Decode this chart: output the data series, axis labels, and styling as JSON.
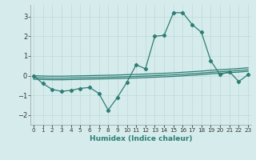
{
  "xlabel": "Humidex (Indice chaleur)",
  "x": [
    0,
    1,
    2,
    3,
    4,
    5,
    6,
    7,
    8,
    9,
    10,
    11,
    12,
    13,
    14,
    15,
    16,
    17,
    18,
    19,
    20,
    21,
    22,
    23
  ],
  "y_main": [
    0.0,
    -0.4,
    -0.7,
    -0.8,
    -0.75,
    -0.65,
    -0.6,
    -0.9,
    -1.75,
    -1.1,
    -0.35,
    0.55,
    0.35,
    2.0,
    2.05,
    3.2,
    3.2,
    2.6,
    2.2,
    0.75,
    0.05,
    0.2,
    -0.3,
    0.05
  ],
  "y_line1": [
    0.0,
    -0.02,
    -0.03,
    -0.03,
    -0.02,
    -0.01,
    0.0,
    0.01,
    0.02,
    0.03,
    0.05,
    0.06,
    0.08,
    0.1,
    0.12,
    0.14,
    0.17,
    0.2,
    0.23,
    0.27,
    0.3,
    0.33,
    0.36,
    0.4
  ],
  "y_line2": [
    -0.1,
    -0.12,
    -0.13,
    -0.13,
    -0.12,
    -0.11,
    -0.1,
    -0.09,
    -0.08,
    -0.07,
    -0.05,
    -0.04,
    -0.02,
    0.0,
    0.02,
    0.04,
    0.07,
    0.1,
    0.13,
    0.17,
    0.2,
    0.23,
    0.26,
    0.3
  ],
  "y_line3": [
    -0.18,
    -0.2,
    -0.21,
    -0.21,
    -0.2,
    -0.19,
    -0.18,
    -0.17,
    -0.16,
    -0.15,
    -0.13,
    -0.12,
    -0.1,
    -0.08,
    -0.06,
    -0.04,
    -0.01,
    0.02,
    0.05,
    0.09,
    0.12,
    0.15,
    0.18,
    0.22
  ],
  "color": "#2d7d74",
  "bg_color": "#d6ecec",
  "grid_color": "#bdd8d8",
  "ylim": [
    -2.5,
    3.6
  ],
  "yticks": [
    -2,
    -1,
    0,
    1,
    2,
    3
  ],
  "xlim": [
    -0.3,
    23.3
  ]
}
